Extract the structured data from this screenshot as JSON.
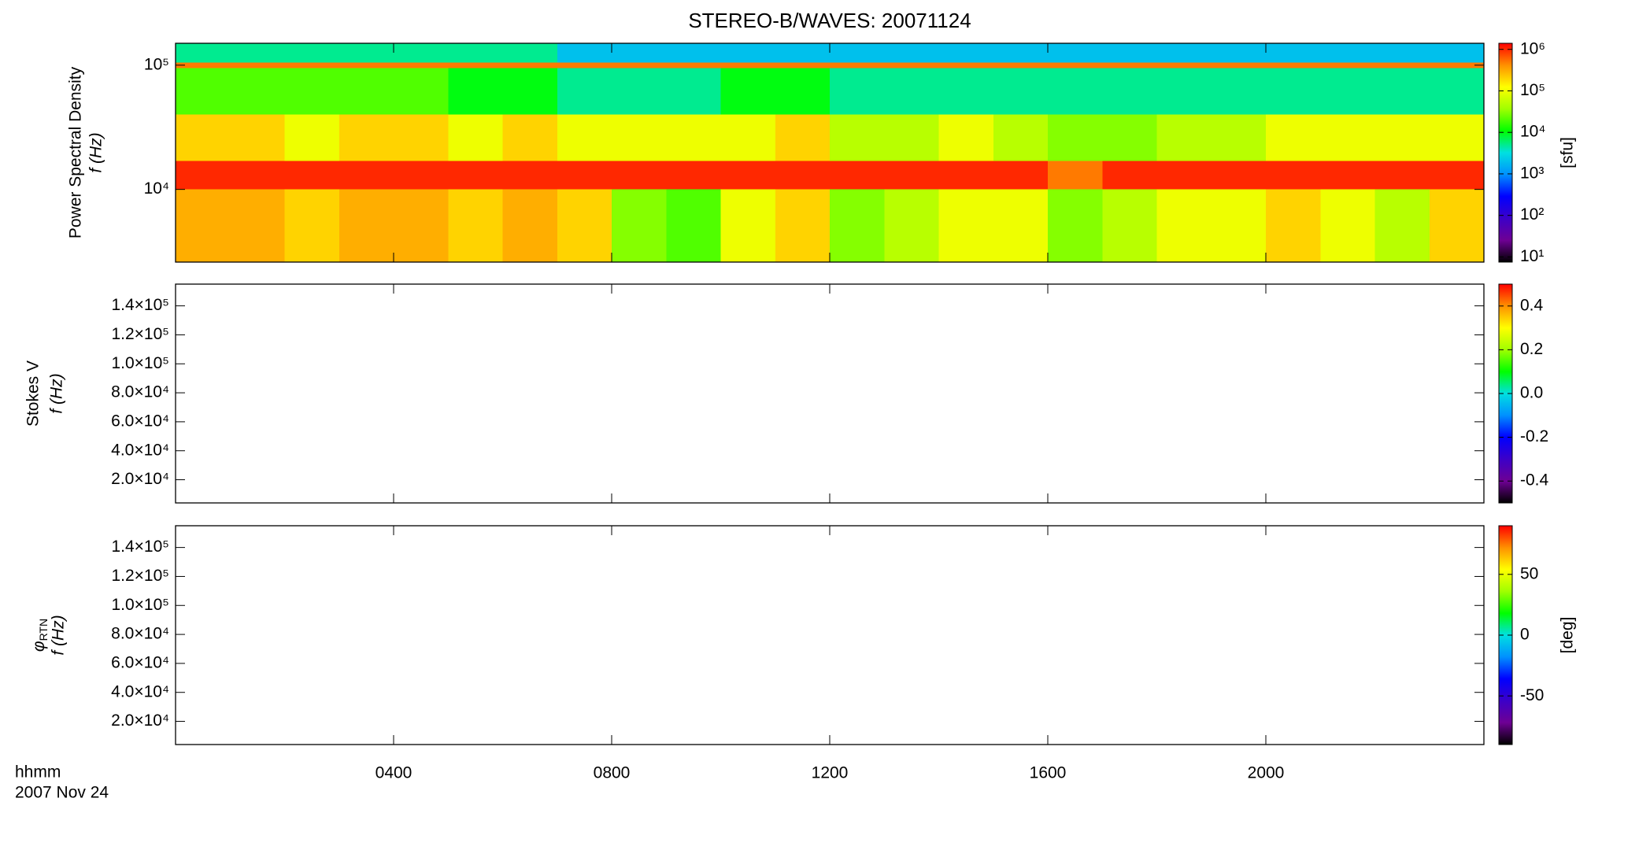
{
  "chart_data": [
    {
      "type": "heatmap",
      "title": "STEREO-B/WAVES: 20071124",
      "ylabel": "Power Spectral Density",
      "ylabel2": "f (Hz)",
      "ylog": true,
      "ylim": [
        2600,
        150000
      ],
      "yticks": [
        {
          "value": 10000,
          "label": "10⁴"
        },
        {
          "value": 100000,
          "label": "10⁵"
        }
      ],
      "xlim": [
        0,
        24
      ],
      "x": [
        0,
        1,
        2,
        3,
        4,
        5,
        6,
        7,
        8,
        9,
        10,
        11,
        12,
        13,
        14,
        15,
        16,
        17,
        18,
        19,
        20,
        21,
        22,
        23,
        24
      ],
      "y_bins": [
        2600,
        10000,
        17000,
        40000,
        95000,
        105000,
        150000
      ],
      "z": [
        [
          300000,
          300000,
          200000,
          300000,
          300000,
          200000,
          300000,
          200000,
          30000,
          20000,
          100000,
          200000,
          30000,
          50000,
          100000,
          100000,
          30000,
          50000,
          100000,
          100000,
          200000,
          100000,
          50000,
          200000
        ],
        [
          1000000,
          1000000,
          1000000,
          1000000,
          1000000,
          1000000,
          1000000,
          1000000,
          1000000,
          1000000,
          1000000,
          1000000,
          1000000,
          1000000,
          1000000,
          1000000,
          500000,
          1000000,
          1000000,
          1000000,
          1000000,
          1000000,
          1000000,
          1000000
        ],
        [
          200000,
          200000,
          100000,
          200000,
          200000,
          100000,
          200000,
          100000,
          100000,
          100000,
          100000,
          200000,
          50000,
          50000,
          100000,
          50000,
          30000,
          30000,
          50000,
          50000,
          100000,
          100000,
          100000,
          100000
        ],
        [
          20000,
          20000,
          20000,
          20000,
          20000,
          10000,
          10000,
          5000,
          5000,
          5000,
          10000,
          10000,
          5000,
          5000,
          5000,
          5000,
          5000,
          5000,
          5000,
          5000,
          5000,
          5000,
          5000,
          5000
        ],
        [
          500000,
          500000,
          500000,
          500000,
          500000,
          500000,
          500000,
          500000,
          500000,
          500000,
          500000,
          500000,
          500000,
          500000,
          500000,
          500000,
          500000,
          500000,
          500000,
          500000,
          500000,
          500000,
          500000,
          500000
        ],
        [
          5000,
          5000,
          5000,
          5000,
          5000,
          5000,
          5000,
          2000,
          2000,
          2000,
          2000,
          2000,
          2000,
          2000,
          2000,
          2000,
          2000,
          2000,
          2000,
          2000,
          2000,
          2000,
          2000,
          2000
        ]
      ],
      "colormap": [
        "#000000",
        "#6e0094",
        "#3c00c8",
        "#0000ff",
        "#0090ff",
        "#00e0e0",
        "#00ff00",
        "#a0ff00",
        "#ffff00",
        "#ff9000",
        "#ff0000"
      ],
      "colorbar": {
        "log": true,
        "lim": [
          7.5,
          1400000
        ],
        "label": "[sfu]",
        "ticks": [
          {
            "value": 10,
            "label": "10¹"
          },
          {
            "value": 100,
            "label": "10²"
          },
          {
            "value": 1000,
            "label": "10³"
          },
          {
            "value": 10000,
            "label": "10⁴"
          },
          {
            "value": 100000,
            "label": "10⁵"
          },
          {
            "value": 1000000,
            "label": "10⁶"
          }
        ]
      }
    },
    {
      "type": "heatmap",
      "ylabel": "Stokes V",
      "ylabel2": "f (Hz)",
      "ylog": false,
      "ylim": [
        4000,
        155000
      ],
      "yticks": [
        {
          "value": 20000,
          "label": "2.0×10⁴"
        },
        {
          "value": 40000,
          "label": "4.0×10⁴"
        },
        {
          "value": 60000,
          "label": "6.0×10⁴"
        },
        {
          "value": 80000,
          "label": "8.0×10⁴"
        },
        {
          "value": 100000,
          "label": "1.0×10⁵"
        },
        {
          "value": 120000,
          "label": "1.2×10⁵"
        },
        {
          "value": 140000,
          "label": "1.4×10⁵"
        }
      ],
      "colorbar": {
        "log": false,
        "lim": [
          -0.5,
          0.5
        ],
        "ticks": [
          {
            "value": -0.4,
            "label": "-0.4"
          },
          {
            "value": -0.2,
            "label": "-0.2"
          },
          {
            "value": 0,
            "label": "0.0"
          },
          {
            "value": 0.2,
            "label": "0.2"
          },
          {
            "value": 0.4,
            "label": "0.4"
          }
        ]
      }
    },
    {
      "type": "heatmap",
      "ylabel_symbol": "φ",
      "ylabel_subscript": "RTN",
      "ylabel2": "f (Hz)",
      "ylog": false,
      "ylim": [
        4000,
        155000
      ],
      "yticks": [
        {
          "value": 20000,
          "label": "2.0×10⁴"
        },
        {
          "value": 40000,
          "label": "4.0×10⁴"
        },
        {
          "value": 60000,
          "label": "6.0×10⁴"
        },
        {
          "value": 80000,
          "label": "8.0×10⁴"
        },
        {
          "value": 100000,
          "label": "1.0×10⁵"
        },
        {
          "value": 120000,
          "label": "1.2×10⁵"
        },
        {
          "value": 140000,
          "label": "1.4×10⁵"
        }
      ],
      "colorbar": {
        "log": false,
        "lim": [
          -90,
          90
        ],
        "label": "[deg]",
        "ticks": [
          -50,
          0,
          50
        ]
      },
      "xlim": [
        0,
        24
      ],
      "xlabel": "hhmm",
      "date_label": "2007 Nov 24",
      "xticks": [
        {
          "value": 4,
          "label": "0400"
        },
        {
          "value": 8,
          "label": "0800"
        },
        {
          "value": 12,
          "label": "1200"
        },
        {
          "value": 16,
          "label": "1600"
        },
        {
          "value": 20,
          "label": "2000"
        }
      ]
    }
  ]
}
